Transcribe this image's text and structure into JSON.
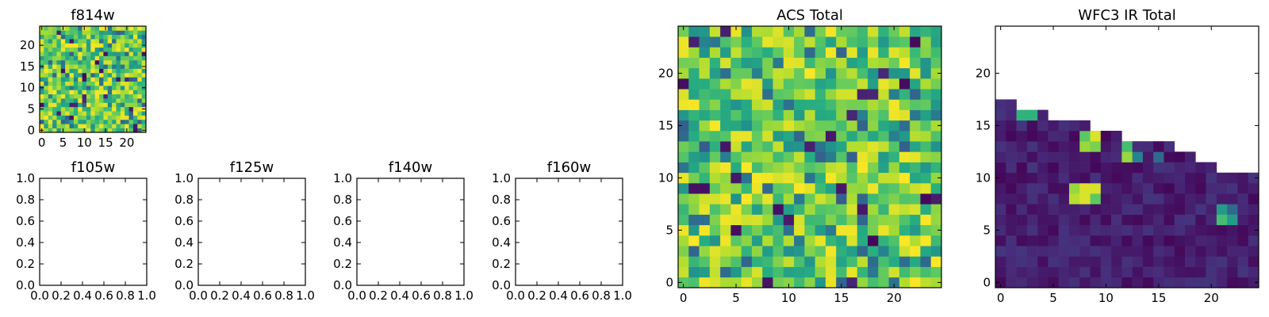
{
  "chart_data": [
    {
      "type": "heatmap",
      "title": "f814w",
      "data_source": "panel_0",
      "grid": [
        25,
        25
      ],
      "xlim": [
        -0.5,
        24.5
      ],
      "ylim": [
        -0.5,
        24.5
      ],
      "xticks": [
        0,
        5,
        10,
        15,
        20
      ],
      "yticks": [
        0,
        5,
        10,
        15,
        20
      ],
      "colormap": "viridis"
    },
    {
      "type": "heatmap",
      "title": "f105w",
      "empty": true,
      "xlim": [
        0,
        1
      ],
      "ylim": [
        0,
        1
      ],
      "xticks": [
        "0.0",
        "0.2",
        "0.4",
        "0.6",
        "0.8",
        "1.0"
      ],
      "yticks": [
        "0.0",
        "0.2",
        "0.4",
        "0.6",
        "0.8",
        "1.0"
      ]
    },
    {
      "type": "heatmap",
      "title": "f125w",
      "empty": true,
      "xlim": [
        0,
        1
      ],
      "ylim": [
        0,
        1
      ],
      "xticks": [
        "0.0",
        "0.2",
        "0.4",
        "0.6",
        "0.8",
        "1.0"
      ],
      "yticks": [
        "0.0",
        "0.2",
        "0.4",
        "0.6",
        "0.8",
        "1.0"
      ]
    },
    {
      "type": "heatmap",
      "title": "f140w",
      "empty": true,
      "xlim": [
        0,
        1
      ],
      "ylim": [
        0,
        1
      ],
      "xticks": [
        "0.0",
        "0.2",
        "0.4",
        "0.6",
        "0.8",
        "1.0"
      ],
      "yticks": [
        "0.0",
        "0.2",
        "0.4",
        "0.6",
        "0.8",
        "1.0"
      ]
    },
    {
      "type": "heatmap",
      "title": "f160w",
      "empty": true,
      "xlim": [
        0,
        1
      ],
      "ylim": [
        0,
        1
      ],
      "xticks": [
        "0.0",
        "0.2",
        "0.4",
        "0.6",
        "0.8",
        "1.0"
      ],
      "yticks": [
        "0.0",
        "0.2",
        "0.4",
        "0.6",
        "0.8",
        "1.0"
      ]
    },
    {
      "type": "heatmap",
      "title": "ACS Total",
      "data_source": "panel_5",
      "grid": [
        25,
        25
      ],
      "xlim": [
        -0.5,
        24.5
      ],
      "ylim": [
        -0.5,
        24.5
      ],
      "xticks": [
        0,
        5,
        10,
        15,
        20
      ],
      "yticks": [
        0,
        5,
        10,
        15,
        20
      ],
      "colormap": "viridis"
    },
    {
      "type": "heatmap",
      "title": "WFC3 IR Total",
      "data_source": "panel_6",
      "grid": [
        25,
        25
      ],
      "xlim": [
        -0.5,
        24.5
      ],
      "ylim": [
        -0.5,
        24.5
      ],
      "xticks": [
        0,
        5,
        10,
        15,
        20
      ],
      "yticks": [
        0,
        5,
        10,
        15,
        20
      ],
      "colormap": "viridis",
      "ir_profile": [
        17,
        17,
        16,
        16,
        16,
        15,
        15,
        15,
        15,
        14,
        14,
        14,
        13,
        13,
        13,
        13,
        13,
        12,
        12,
        11,
        11,
        10,
        10,
        10,
        10
      ],
      "ir_bright": [
        {
          "x": 2,
          "y": 16,
          "v": 0.65
        },
        {
          "x": 3,
          "y": 16,
          "v": 0.65
        },
        {
          "x": 8,
          "y": 14,
          "v": 0.75
        },
        {
          "x": 9,
          "y": 14,
          "v": 0.95
        },
        {
          "x": 8,
          "y": 13,
          "v": 0.85
        },
        {
          "x": 9,
          "y": 13,
          "v": 0.8
        },
        {
          "x": 12,
          "y": 13,
          "v": 0.7
        },
        {
          "x": 12,
          "y": 12,
          "v": 0.85
        },
        {
          "x": 13,
          "y": 12,
          "v": 0.45
        },
        {
          "x": 15,
          "y": 12,
          "v": 0.35
        },
        {
          "x": 7,
          "y": 9,
          "v": 0.85
        },
        {
          "x": 8,
          "y": 9,
          "v": 0.95
        },
        {
          "x": 9,
          "y": 9,
          "v": 0.95
        },
        {
          "x": 7,
          "y": 8,
          "v": 0.9
        },
        {
          "x": 8,
          "y": 8,
          "v": 0.95
        },
        {
          "x": 9,
          "y": 8,
          "v": 0.75
        },
        {
          "x": 21,
          "y": 7,
          "v": 0.55
        },
        {
          "x": 22,
          "y": 7,
          "v": 0.35
        },
        {
          "x": 21,
          "y": 6,
          "v": 0.7
        },
        {
          "x": 22,
          "y": 6,
          "v": 0.55
        }
      ]
    }
  ]
}
